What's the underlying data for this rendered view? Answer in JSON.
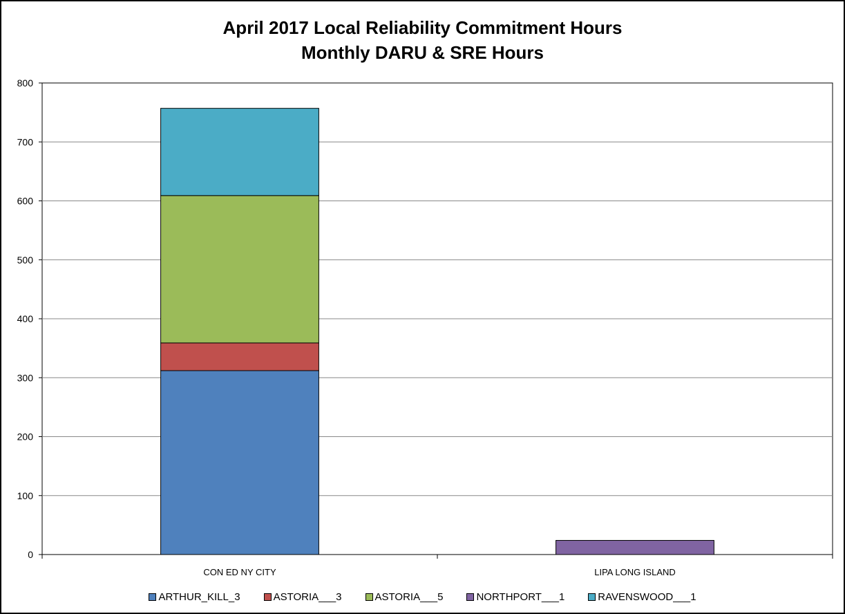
{
  "chart_data": {
    "type": "bar",
    "stacked": true,
    "title": "April 2017 Local Reliability Commitment Hours",
    "subtitle": "Monthly DARU & SRE Hours",
    "xlabel": "",
    "ylabel": "",
    "ylim": [
      0,
      800
    ],
    "yticks": [
      "0",
      "100",
      "200",
      "300",
      "400",
      "500",
      "600",
      "700",
      "800"
    ],
    "categories": [
      "CON ED NY CITY",
      "LIPA LONG ISLAND"
    ],
    "grid": true,
    "legend_position": "bottom",
    "series": [
      {
        "name": "ARTHUR_KILL_3",
        "color": "#4F81BD",
        "values": [
          312,
          0
        ]
      },
      {
        "name": "ASTORIA___3",
        "color": "#C0504D",
        "values": [
          47,
          0
        ]
      },
      {
        "name": "ASTORIA___5",
        "color": "#9BBB59",
        "values": [
          250,
          0
        ]
      },
      {
        "name": "NORTHPORT___1",
        "color": "#8064A2",
        "values": [
          0,
          24
        ]
      },
      {
        "name": "RAVENSWOOD___1",
        "color": "#4BACC6",
        "values": [
          148,
          0
        ]
      }
    ]
  }
}
